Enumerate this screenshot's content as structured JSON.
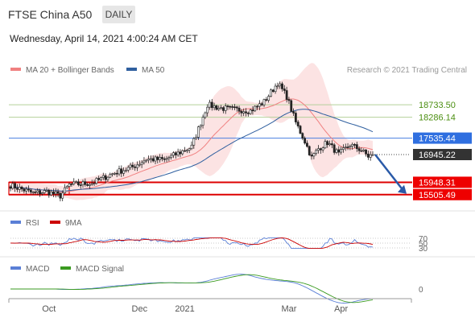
{
  "header": {
    "instrument": "FTSE China A50",
    "timeframe": "DAILY",
    "datetime": "Wednesday, April 14, 2021 4:00:24 AM CET"
  },
  "chart_data": {
    "type": "candlestick",
    "credit": "Research © 2021 Trading Central",
    "legend": [
      {
        "label": "MA 20 + Bollinger Bands",
        "color": "#f08080"
      },
      {
        "label": "MA 50",
        "color": "#2f5f9f"
      }
    ],
    "levels": [
      {
        "label": "18733.50",
        "value": 18733.5,
        "style": "green"
      },
      {
        "label": "18286.14",
        "value": 18286.14,
        "style": "green"
      },
      {
        "label": "17535.44",
        "value": 17535.44,
        "style": "blue"
      },
      {
        "label": "16945.22",
        "value": 16945.22,
        "style": "current"
      },
      {
        "label": "15948.31",
        "value": 15948.31,
        "style": "red"
      },
      {
        "label": "15505.49",
        "value": 15505.49,
        "style": "red"
      }
    ],
    "forecast": {
      "from": 16945.22,
      "to": 15505.49
    },
    "months": [
      {
        "label": "Oct",
        "index": 17
      },
      {
        "label": "Dec",
        "index": 57
      },
      {
        "label": "2021",
        "index": 77
      },
      {
        "label": "Mar",
        "index": 123
      },
      {
        "label": "Apr",
        "index": 146
      }
    ],
    "price_path": [
      [
        0,
        15840
      ],
      [
        5,
        15700
      ],
      [
        10,
        15560
      ],
      [
        16,
        15620
      ],
      [
        22,
        15460
      ],
      [
        26,
        15860
      ],
      [
        36,
        15920
      ],
      [
        46,
        16290
      ],
      [
        54,
        16500
      ],
      [
        60,
        16780
      ],
      [
        68,
        16760
      ],
      [
        80,
        17220
      ],
      [
        87,
        18740
      ],
      [
        92,
        18620
      ],
      [
        100,
        18560
      ],
      [
        106,
        18520
      ],
      [
        112,
        18840
      ],
      [
        118,
        19520
      ],
      [
        122,
        19030
      ],
      [
        126,
        18100
      ],
      [
        130,
        17420
      ],
      [
        133,
        16830
      ],
      [
        136,
        17160
      ],
      [
        140,
        17380
      ],
      [
        145,
        16950
      ],
      [
        150,
        17300
      ],
      [
        155,
        17100
      ],
      [
        158,
        16880
      ],
      [
        160,
        16945
      ]
    ],
    "rsi": {
      "title": "RSI",
      "ma_label": "9MA",
      "rsi_color": "#5a7fd6",
      "ma_color": "#cc0000",
      "levels": [
        {
          "label": "70",
          "value": 70
        },
        {
          "label": "50",
          "value": 50
        },
        {
          "label": "30",
          "value": 30
        }
      ]
    },
    "macd": {
      "title": "MACD",
      "signal_label": "MACD Signal",
      "macd_color": "#5a7fd6",
      "signal_color": "#3a9a20",
      "zero_label": "0"
    }
  }
}
